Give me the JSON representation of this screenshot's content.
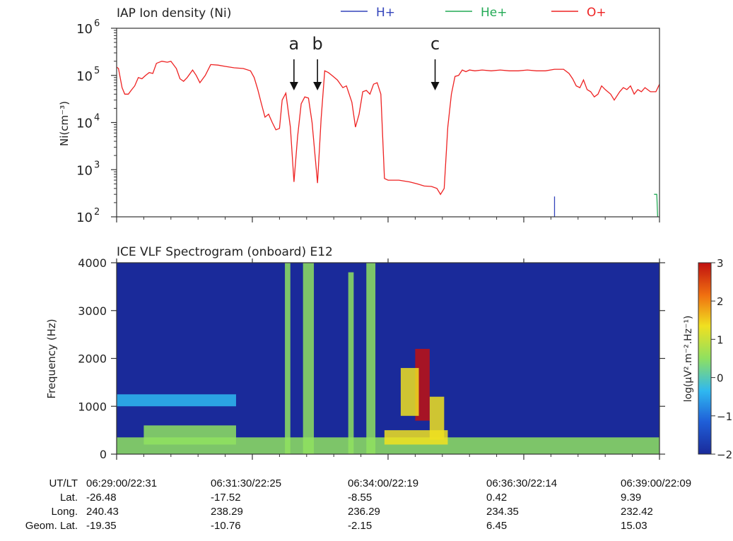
{
  "chart_data": [
    {
      "type": "line",
      "title": "IAP Ion density (Ni)",
      "ylabel": "Ni(cm⁻³)",
      "yscale": "log",
      "ylim": [
        100,
        1000000
      ],
      "yticks": [
        {
          "base": "10",
          "exp": "2"
        },
        {
          "base": "10",
          "exp": "3"
        },
        {
          "base": "10",
          "exp": "4"
        },
        {
          "base": "10",
          "exp": "5"
        },
        {
          "base": "10",
          "exp": "6"
        }
      ],
      "xlim": [
        "06:29:00",
        "06:39:00"
      ],
      "legend_position": "top",
      "series": [
        {
          "name": "H+",
          "color": "#3344bb",
          "points": [
            [
              "06:37:04",
              270
            ],
            [
              "06:37:04",
              100
            ]
          ]
        },
        {
          "name": "He+",
          "color": "#22aa55",
          "points": [
            [
              "06:38:54",
              300
            ],
            [
              "06:38:57",
              300
            ],
            [
              "06:38:58",
              100
            ]
          ]
        },
        {
          "name": "O+",
          "color": "#ee2222",
          "points": [
            [
              "06:29:00",
              150000
            ],
            [
              "06:29:02",
              140000
            ],
            [
              "06:29:06",
              55000
            ],
            [
              "06:29:09",
              40000
            ],
            [
              "06:29:13",
              40000
            ],
            [
              "06:29:16",
              48000
            ],
            [
              "06:29:20",
              60000
            ],
            [
              "06:29:24",
              90000
            ],
            [
              "06:29:28",
              85000
            ],
            [
              "06:29:32",
              100000
            ],
            [
              "06:29:36",
              115000
            ],
            [
              "06:29:40",
              110000
            ],
            [
              "06:29:44",
              180000
            ],
            [
              "06:29:50",
              200000
            ],
            [
              "06:29:56",
              190000
            ],
            [
              "06:30:00",
              200000
            ],
            [
              "06:30:06",
              140000
            ],
            [
              "06:30:10",
              85000
            ],
            [
              "06:30:14",
              75000
            ],
            [
              "06:30:18",
              90000
            ],
            [
              "06:30:24",
              130000
            ],
            [
              "06:30:28",
              100000
            ],
            [
              "06:30:32",
              70000
            ],
            [
              "06:30:38",
              100000
            ],
            [
              "06:30:44",
              170000
            ],
            [
              "06:30:52",
              165000
            ],
            [
              "06:31:00",
              155000
            ],
            [
              "06:31:10",
              145000
            ],
            [
              "06:31:20",
              140000
            ],
            [
              "06:31:28",
              125000
            ],
            [
              "06:31:32",
              90000
            ],
            [
              "06:31:36",
              50000
            ],
            [
              "06:31:40",
              25000
            ],
            [
              "06:31:44",
              13000
            ],
            [
              "06:31:48",
              15000
            ],
            [
              "06:31:52",
              10000
            ],
            [
              "06:31:56",
              7000
            ],
            [
              "06:32:00",
              7500
            ],
            [
              "06:32:03",
              30000
            ],
            [
              "06:32:07",
              42000
            ],
            [
              "06:32:12",
              8000
            ],
            [
              "06:32:16",
              550
            ],
            [
              "06:32:20",
              5000
            ],
            [
              "06:32:24",
              25000
            ],
            [
              "06:32:28",
              35000
            ],
            [
              "06:32:32",
              33000
            ],
            [
              "06:32:36",
              10000
            ],
            [
              "06:32:42",
              520
            ],
            [
              "06:32:46",
              12000
            ],
            [
              "06:32:50",
              125000
            ],
            [
              "06:32:54",
              115000
            ],
            [
              "06:32:58",
              100000
            ],
            [
              "06:33:04",
              80000
            ],
            [
              "06:33:10",
              55000
            ],
            [
              "06:33:14",
              60000
            ],
            [
              "06:33:20",
              27000
            ],
            [
              "06:33:24",
              8000
            ],
            [
              "06:33:28",
              15000
            ],
            [
              "06:33:32",
              45000
            ],
            [
              "06:33:36",
              48000
            ],
            [
              "06:33:40",
              40000
            ],
            [
              "06:33:44",
              65000
            ],
            [
              "06:33:48",
              70000
            ],
            [
              "06:33:52",
              40000
            ],
            [
              "06:33:56",
              650
            ],
            [
              "06:34:00",
              600
            ],
            [
              "06:34:12",
              600
            ],
            [
              "06:34:24",
              550
            ],
            [
              "06:34:32",
              500
            ],
            [
              "06:34:40",
              450
            ],
            [
              "06:34:48",
              440
            ],
            [
              "06:34:54",
              400
            ],
            [
              "06:34:58",
              300
            ],
            [
              "06:35:02",
              400
            ],
            [
              "06:35:06",
              8000
            ],
            [
              "06:35:10",
              40000
            ],
            [
              "06:35:14",
              95000
            ],
            [
              "06:35:18",
              100000
            ],
            [
              "06:35:22",
              130000
            ],
            [
              "06:35:26",
              120000
            ],
            [
              "06:35:30",
              130000
            ],
            [
              "06:35:36",
              125000
            ],
            [
              "06:35:44",
              130000
            ],
            [
              "06:35:54",
              125000
            ],
            [
              "06:36:04",
              130000
            ],
            [
              "06:36:14",
              125000
            ],
            [
              "06:36:24",
              125000
            ],
            [
              "06:36:34",
              130000
            ],
            [
              "06:36:44",
              125000
            ],
            [
              "06:36:54",
              125000
            ],
            [
              "06:37:04",
              135000
            ],
            [
              "06:37:14",
              135000
            ],
            [
              "06:37:20",
              110000
            ],
            [
              "06:37:24",
              85000
            ],
            [
              "06:37:28",
              60000
            ],
            [
              "06:37:32",
              55000
            ],
            [
              "06:37:36",
              80000
            ],
            [
              "06:37:40",
              50000
            ],
            [
              "06:37:44",
              45000
            ],
            [
              "06:37:48",
              35000
            ],
            [
              "06:37:52",
              40000
            ],
            [
              "06:37:56",
              60000
            ],
            [
              "06:38:00",
              50000
            ],
            [
              "06:38:06",
              40000
            ],
            [
              "06:38:10",
              30000
            ],
            [
              "06:38:16",
              45000
            ],
            [
              "06:38:20",
              55000
            ],
            [
              "06:38:24",
              50000
            ],
            [
              "06:38:28",
              60000
            ],
            [
              "06:38:32",
              40000
            ],
            [
              "06:38:36",
              50000
            ],
            [
              "06:38:40",
              45000
            ],
            [
              "06:38:44",
              55000
            ],
            [
              "06:38:50",
              45000
            ],
            [
              "06:38:56",
              45000
            ],
            [
              "06:39:00",
              65000
            ]
          ]
        }
      ],
      "annotations": [
        {
          "label": "a",
          "time": "06:32:16"
        },
        {
          "label": "b",
          "time": "06:32:42"
        },
        {
          "label": "c",
          "time": "06:34:52"
        }
      ]
    },
    {
      "type": "heatmap",
      "title": "ICE VLF Spectrogram (onboard) E12",
      "ylabel": "Frequency (Hz)",
      "ylim": [
        0,
        4000
      ],
      "yticks": [
        "0",
        "1000",
        "2000",
        "3000",
        "4000"
      ],
      "xlim": [
        "06:29:00",
        "06:39:00"
      ],
      "colorbar": {
        "label": "log(μV².m⁻².Hz⁻¹)",
        "range": [
          -2,
          3
        ],
        "ticks": [
          "3",
          "2",
          "1",
          "0",
          "−1",
          "−2"
        ],
        "colors": [
          "#1a2a9a",
          "#1f5fd8",
          "#2fb8f0",
          "#8fe060",
          "#f0e020",
          "#f07010",
          "#c01010"
        ]
      },
      "features": [
        {
          "kind": "lower-band",
          "t_start": "06:29:00",
          "t_end": "06:39:00",
          "f_max": 350,
          "level": 0.5
        },
        {
          "kind": "band",
          "t_start": "06:29:00",
          "t_end": "06:31:12",
          "f_low": 1000,
          "f_high": 1250,
          "level": 0.0
        },
        {
          "kind": "band",
          "t_start": "06:29:30",
          "t_end": "06:31:12",
          "f_low": 200,
          "f_high": 600,
          "level": 0.9
        },
        {
          "kind": "burst",
          "t_start": "06:32:26",
          "t_end": "06:32:38",
          "f_max": 4000,
          "level": 0.6
        },
        {
          "kind": "burst",
          "t_start": "06:33:36",
          "t_end": "06:33:46",
          "f_max": 4000,
          "level": 0.4
        },
        {
          "kind": "burst",
          "t_start": "06:33:16",
          "t_end": "06:33:22",
          "f_max": 3800,
          "level": 0.2
        },
        {
          "kind": "burst",
          "t_start": "06:32:06",
          "t_end": "06:32:12",
          "f_max": 4000,
          "level": 0.2
        },
        {
          "kind": "emission",
          "t_start": "06:34:30",
          "t_end": "06:34:46",
          "f_low": 700,
          "f_high": 2200,
          "level": 2.6
        },
        {
          "kind": "emission",
          "t_start": "06:34:14",
          "t_end": "06:34:34",
          "f_low": 800,
          "f_high": 1800,
          "level": 1.6
        },
        {
          "kind": "emission",
          "t_start": "06:34:46",
          "t_end": "06:35:02",
          "f_low": 300,
          "f_high": 1200,
          "level": 1.0
        },
        {
          "kind": "emission",
          "t_start": "06:33:56",
          "t_end": "06:35:06",
          "f_low": 200,
          "f_high": 500,
          "level": 1.2
        }
      ]
    }
  ],
  "orbit_table": {
    "row_labels": [
      "UT/LT",
      "Lat.",
      "Long.",
      "Geom. Lat."
    ],
    "columns": [
      {
        "ut_lt": "06:29:00/22:31",
        "lat": "-26.48",
        "long": "240.43",
        "geom_lat": "-19.35"
      },
      {
        "ut_lt": "06:31:30/22:25",
        "lat": "-17.52",
        "long": "238.29",
        "geom_lat": "-10.76"
      },
      {
        "ut_lt": "06:34:00/22:19",
        "lat": "-8.55",
        "long": "236.29",
        "geom_lat": "-2.15"
      },
      {
        "ut_lt": "06:36:30/22:14",
        "lat": "0.42",
        "long": "234.35",
        "geom_lat": "6.45"
      },
      {
        "ut_lt": "06:39:00/22:09",
        "lat": "9.39",
        "long": "232.42",
        "geom_lat": "15.03"
      }
    ]
  }
}
